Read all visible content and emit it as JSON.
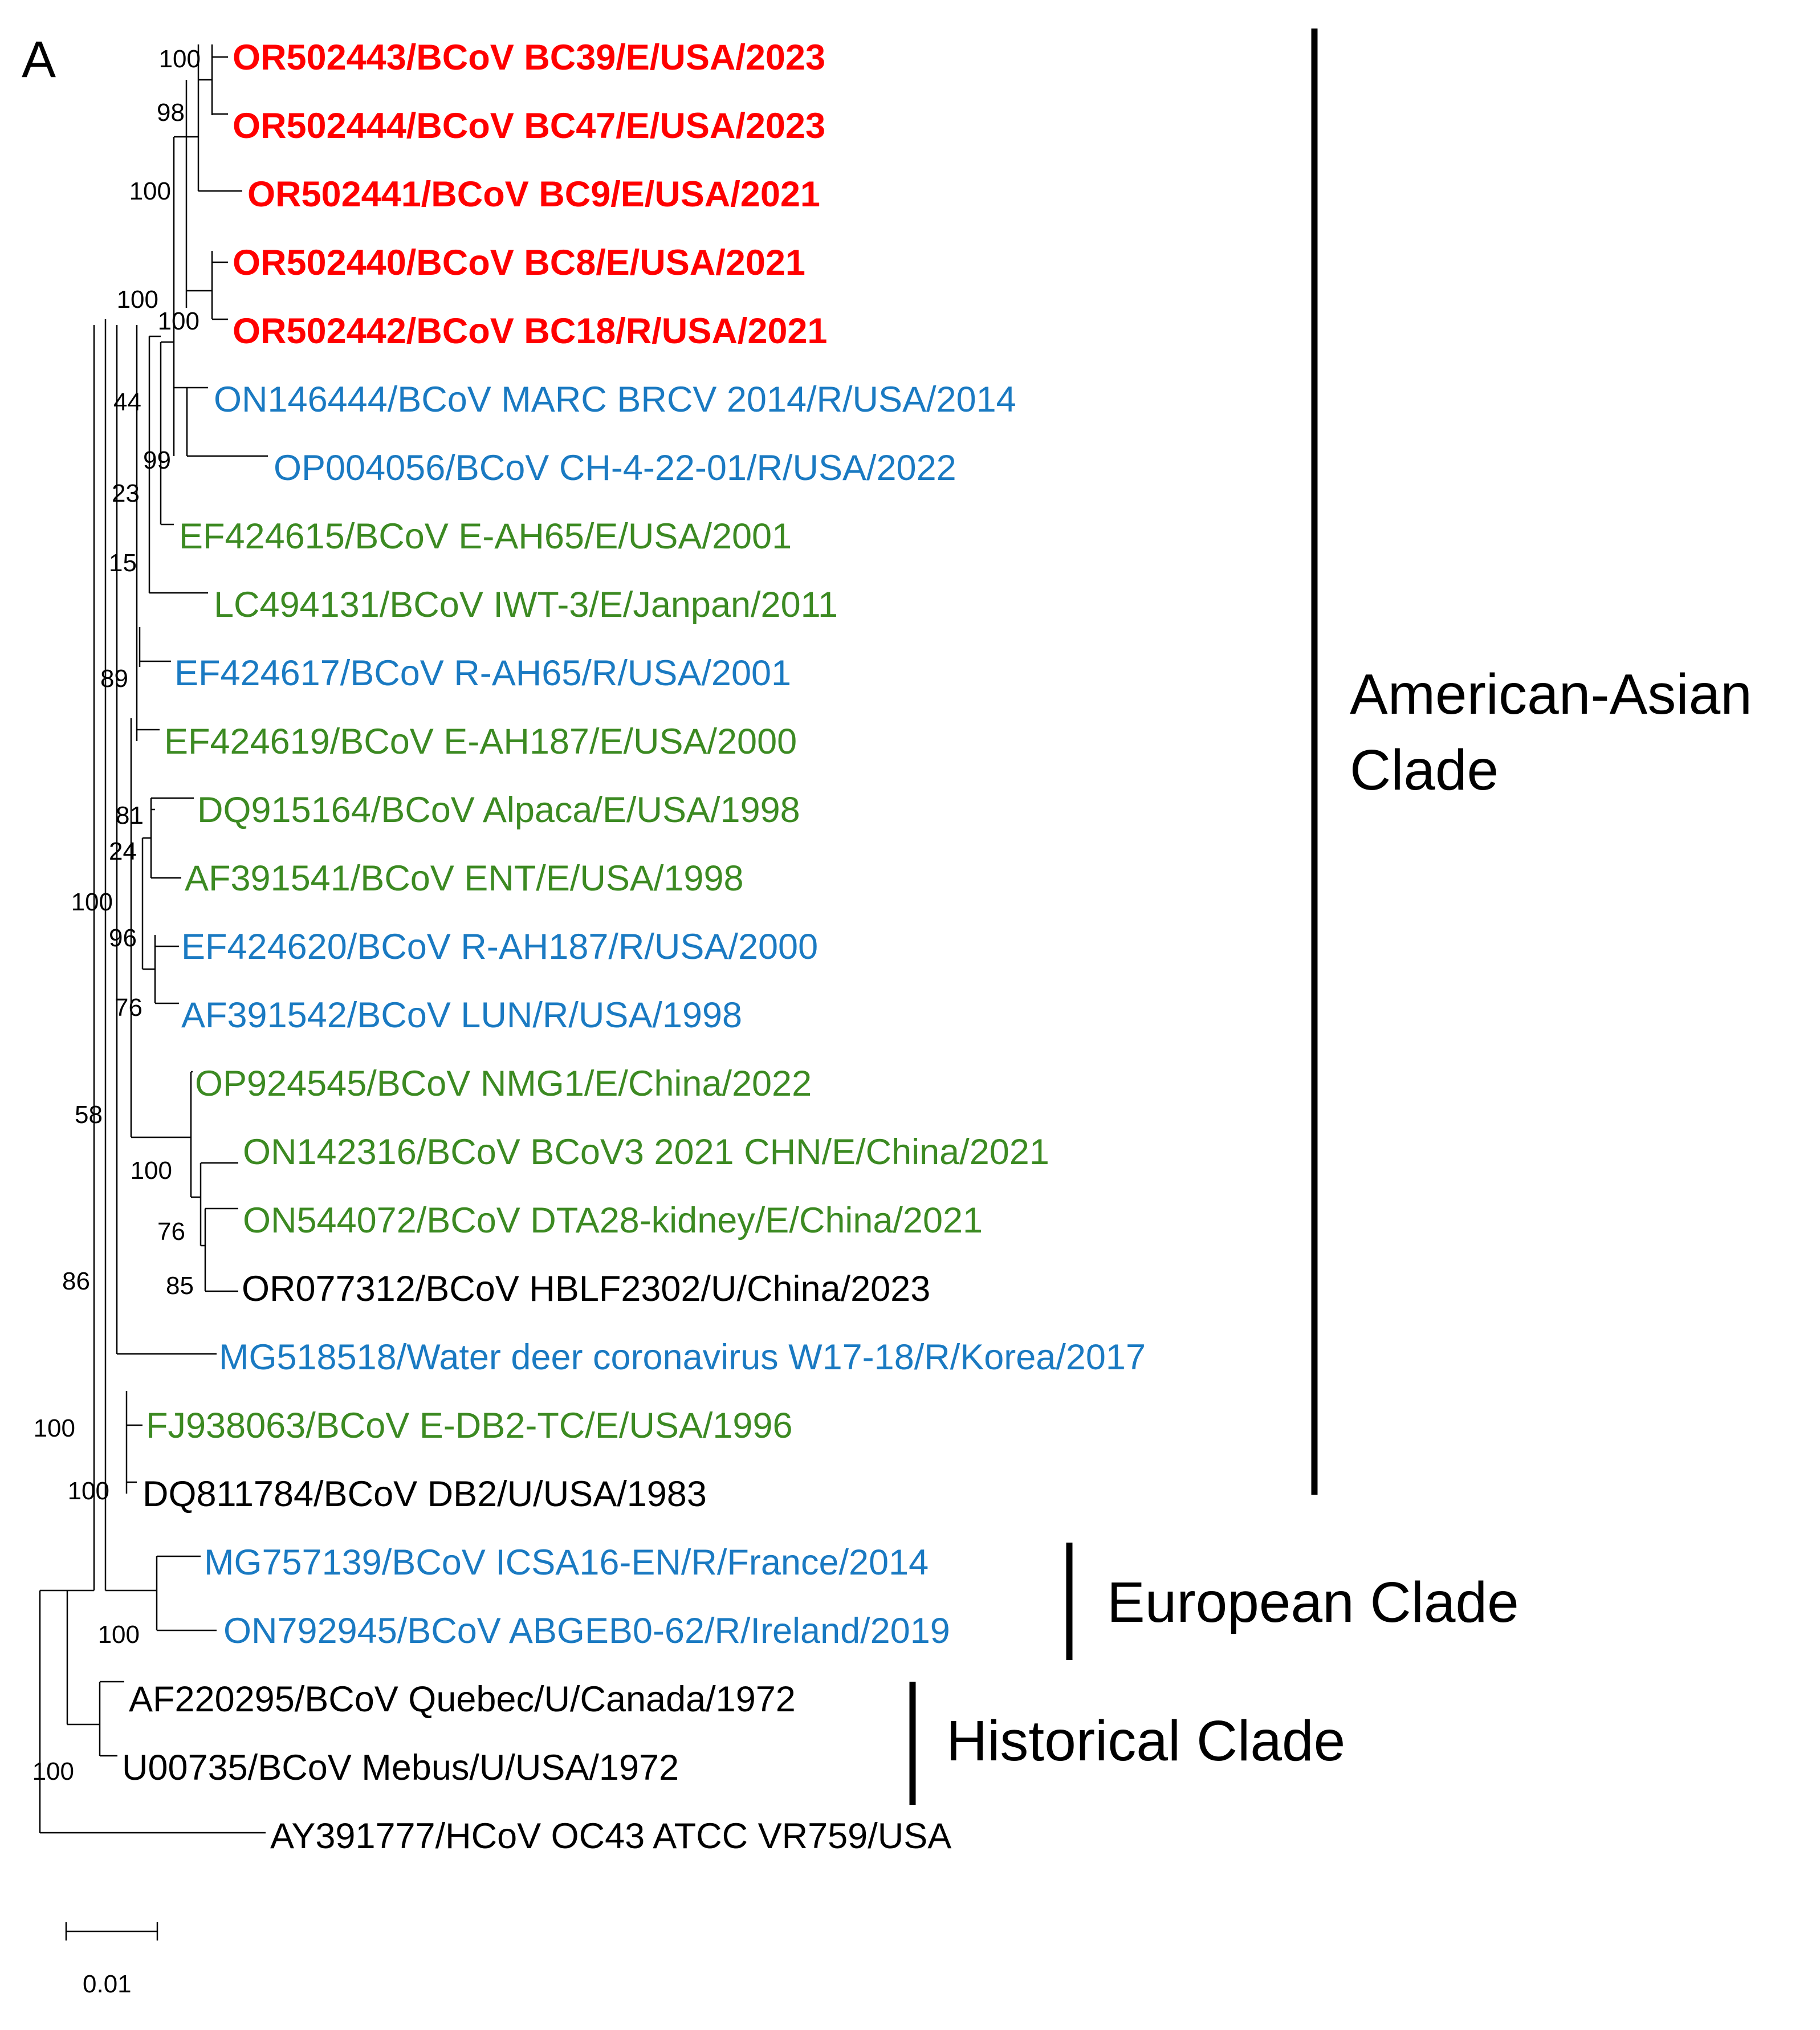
{
  "panel_label": "A",
  "colors": {
    "newly_sequenced": "#ff0000",
    "respiratory": "#1a7ac2",
    "enteric": "#3c8a22",
    "other": "#000000"
  },
  "taxa": [
    {
      "label": "OR502443/BCoV BC39/E/USA/2023",
      "color_key": "newly_sequenced",
      "bold": true
    },
    {
      "label": "OR502444/BCoV BC47/E/USA/2023",
      "color_key": "newly_sequenced",
      "bold": true
    },
    {
      "label": "OR502441/BCoV BC9/E/USA/2021",
      "color_key": "newly_sequenced",
      "bold": true
    },
    {
      "label": "OR502440/BCoV BC8/E/USA/2021",
      "color_key": "newly_sequenced",
      "bold": true
    },
    {
      "label": "OR502442/BCoV BC18/R/USA/2021",
      "color_key": "newly_sequenced",
      "bold": true
    },
    {
      "label": "ON146444/BCoV MARC BRCV 2014/R/USA/2014",
      "color_key": "respiratory",
      "bold": false
    },
    {
      "label": "OP004056/BCoV CH-4-22-01/R/USA/2022",
      "color_key": "respiratory",
      "bold": false
    },
    {
      "label": "EF424615/BCoV E-AH65/E/USA/2001",
      "color_key": "enteric",
      "bold": false
    },
    {
      "label": "LC494131/BCoV IWT-3/E/Janpan/2011",
      "color_key": "enteric",
      "bold": false
    },
    {
      "label": "EF424617/BCoV R-AH65/R/USA/2001",
      "color_key": "respiratory",
      "bold": false
    },
    {
      "label": "EF424619/BCoV E-AH187/E/USA/2000",
      "color_key": "enteric",
      "bold": false
    },
    {
      "label": "DQ915164/BCoV Alpaca/E/USA/1998",
      "color_key": "enteric",
      "bold": false
    },
    {
      "label": "AF391541/BCoV ENT/E/USA/1998",
      "color_key": "enteric",
      "bold": false
    },
    {
      "label": "EF424620/BCoV R-AH187/R/USA/2000",
      "color_key": "respiratory",
      "bold": false
    },
    {
      "label": "AF391542/BCoV LUN/R/USA/1998",
      "color_key": "respiratory",
      "bold": false
    },
    {
      "label": "OP924545/BCoV NMG1/E/China/2022",
      "color_key": "enteric",
      "bold": false
    },
    {
      "label": "ON142316/BCoV BCoV3 2021 CHN/E/China/2021",
      "color_key": "enteric",
      "bold": false
    },
    {
      "label": "ON544072/BCoV DTA28-kidney/E/China/2021",
      "color_key": "enteric",
      "bold": false
    },
    {
      "label": "OR077312/BCoV HBLF2302/U/China/2023",
      "color_key": "other",
      "bold": false
    },
    {
      "label": "MG518518/Water deer coronavirus W17-18/R/Korea/2017",
      "color_key": "respiratory",
      "bold": false
    },
    {
      "label": "FJ938063/BCoV E-DB2-TC/E/USA/1996",
      "color_key": "enteric",
      "bold": false
    },
    {
      "label": "DQ811784/BCoV DB2/U/USA/1983",
      "color_key": "other",
      "bold": false
    },
    {
      "label": "MG757139/BCoV ICSA16-EN/R/France/2014",
      "color_key": "respiratory",
      "bold": false
    },
    {
      "label": "ON792945/BCoV ABGEB0-62/R/Ireland/2019",
      "color_key": "respiratory",
      "bold": false
    },
    {
      "label": "AF220295/BCoV Quebec/U/Canada/1972",
      "color_key": "other",
      "bold": false
    },
    {
      "label": "U00735/BCoV Mebus/U/USA/1972",
      "color_key": "other",
      "bold": false
    },
    {
      "label": "AY391777/HCoV OC43 ATCC VR759/USA",
      "color_key": "other",
      "bold": false
    }
  ],
  "support_values": [
    "100",
    "98",
    "100",
    "100",
    "100",
    "44",
    "99",
    "23",
    "15",
    "89",
    "81",
    "24",
    "100",
    "96",
    "76",
    "58",
    "100",
    "76",
    "85",
    "86",
    "100",
    "100",
    "100",
    "100"
  ],
  "clades": [
    {
      "name_lines": [
        "American-Asian",
        "Clade"
      ]
    },
    {
      "name_lines": [
        "European Clade"
      ]
    },
    {
      "name_lines": [
        "Historical Clade"
      ]
    }
  ],
  "scale_bar": {
    "value": 0.01,
    "label": "0.01"
  }
}
